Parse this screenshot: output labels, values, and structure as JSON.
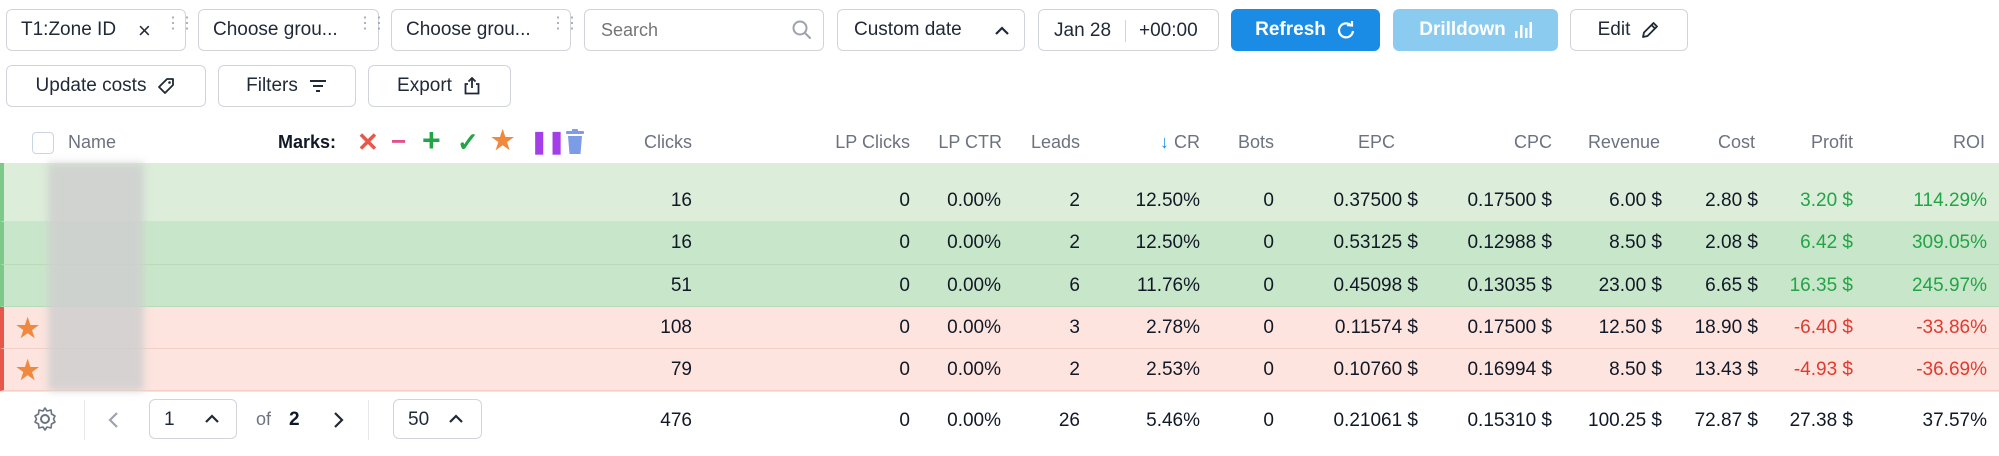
{
  "toolbar": {
    "zone_chip": "T1:Zone ID",
    "group1": "Choose grou...",
    "group2": "Choose grou...",
    "search_placeholder": "Search",
    "date_mode": "Custom date",
    "date": "Jan 28",
    "timezone": "+00:00",
    "refresh": "Refresh",
    "drilldown": "Drilldown",
    "edit": "Edit",
    "update_costs": "Update costs",
    "filters": "Filters",
    "export": "Export"
  },
  "table": {
    "headers": {
      "name": "Name",
      "marks": "Marks:",
      "clicks": "Clicks",
      "lp_clicks": "LP Clicks",
      "lp_ctr": "LP CTR",
      "leads": "Leads",
      "cr": "CR",
      "bots": "Bots",
      "epc": "EPC",
      "cpc": "CPC",
      "revenue": "Revenue",
      "cost": "Cost",
      "profit": "Profit",
      "roi": "ROI"
    },
    "rows": [
      {
        "clicks": "16",
        "lp_clicks": "0",
        "lp_ctr": "0.00%",
        "leads": "2",
        "cr": "12.50%",
        "bots": "0",
        "epc": "0.37500 $",
        "cpc": "0.17500 $",
        "revenue": "6.00 $",
        "cost": "2.80 $",
        "profit": "3.20 $",
        "roi": "114.29%"
      },
      {
        "clicks": "16",
        "lp_clicks": "0",
        "lp_ctr": "0.00%",
        "leads": "2",
        "cr": "12.50%",
        "bots": "0",
        "epc": "0.53125 $",
        "cpc": "0.12988 $",
        "revenue": "8.50 $",
        "cost": "2.08 $",
        "profit": "6.42 $",
        "roi": "309.05%"
      },
      {
        "clicks": "51",
        "lp_clicks": "0",
        "lp_ctr": "0.00%",
        "leads": "6",
        "cr": "11.76%",
        "bots": "0",
        "epc": "0.45098 $",
        "cpc": "0.13035 $",
        "revenue": "23.00 $",
        "cost": "6.65 $",
        "profit": "16.35 $",
        "roi": "245.97%"
      },
      {
        "clicks": "108",
        "lp_clicks": "0",
        "lp_ctr": "0.00%",
        "leads": "3",
        "cr": "2.78%",
        "bots": "0",
        "epc": "0.11574 $",
        "cpc": "0.17500 $",
        "revenue": "12.50 $",
        "cost": "18.90 $",
        "profit": "-6.40 $",
        "roi": "-33.86%"
      },
      {
        "clicks": "79",
        "lp_clicks": "0",
        "lp_ctr": "0.00%",
        "leads": "2",
        "cr": "2.53%",
        "bots": "0",
        "epc": "0.10760 $",
        "cpc": "0.16994 $",
        "revenue": "8.50 $",
        "cost": "13.43 $",
        "profit": "-4.93 $",
        "roi": "-36.69%"
      }
    ],
    "totals": {
      "clicks": "476",
      "lp_clicks": "0",
      "lp_ctr": "0.00%",
      "leads": "26",
      "cr": "5.46%",
      "bots": "0",
      "epc": "0.21061 $",
      "cpc": "0.15310 $",
      "revenue": "100.25 $",
      "cost": "72.87 $",
      "profit": "27.38 $",
      "roi": "37.57%"
    }
  },
  "pagination": {
    "page": "1",
    "of_label": "of",
    "total_pages": "2",
    "page_size": "50"
  },
  "colors": {
    "accent": "#1a8ce6",
    "positive_row": "#c8e6c9",
    "negative_row": "#fde4de",
    "profit_positive": "#22a447",
    "profit_negative": "#e03b2f",
    "star": "#f0883e"
  }
}
